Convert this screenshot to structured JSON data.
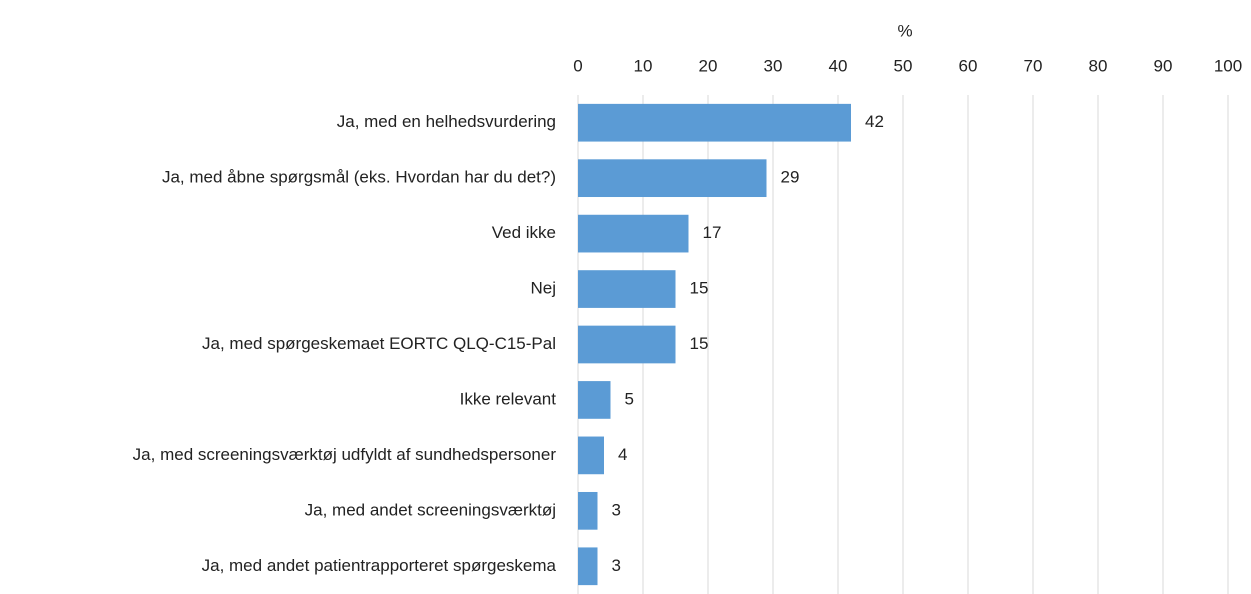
{
  "chart_data": {
    "type": "bar",
    "orientation": "horizontal",
    "xlabel": "%",
    "categories": [
      "Ja, med en helhedsvurdering",
      "Ja, med åbne spørgsmål (eks. Hvordan har du det?)",
      "Ved ikke",
      "Nej",
      "Ja, med spørgeskemaet EORTC QLQ-C15-Pal",
      "Ikke relevant",
      "Ja, med screeningsværktøj udfyldt af sundhedspersoner",
      "Ja, med andet screeningsværktøj",
      "Ja, med andet patientrapporteret spørgeskema"
    ],
    "values": [
      42,
      29,
      17,
      15,
      15,
      5,
      4,
      3,
      3
    ],
    "color": "#5b9bd5",
    "xlim": [
      0,
      100
    ],
    "xticks": [
      0,
      10,
      20,
      30,
      40,
      50,
      60,
      70,
      80,
      90,
      100
    ],
    "grid": true
  }
}
